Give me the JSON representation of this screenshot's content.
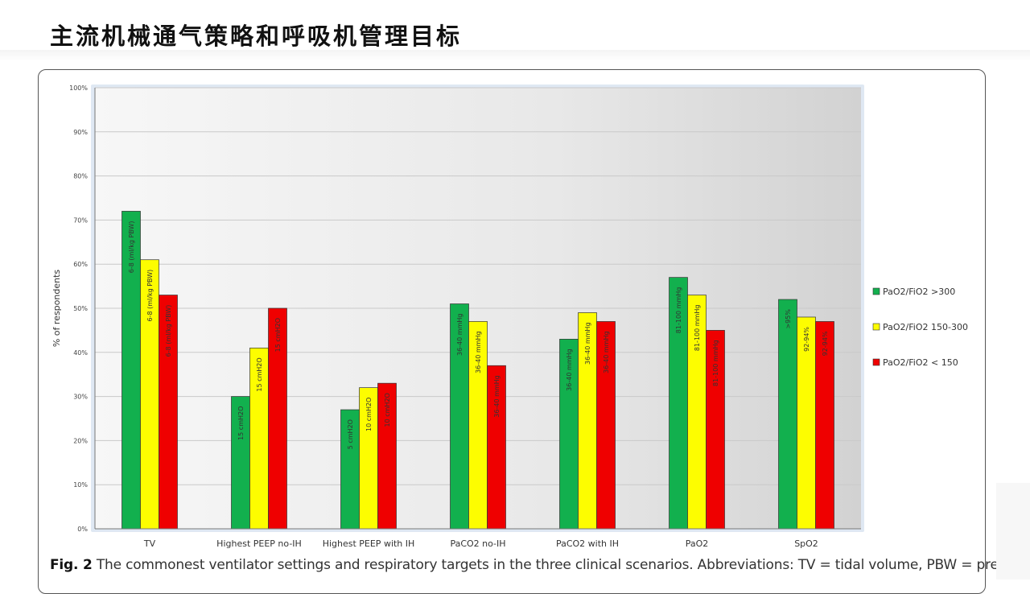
{
  "page": {
    "title": "主流机械通气策略和呼吸机管理目标"
  },
  "caption": {
    "label": "Fig. 2",
    "text": "The commonest ventilator settings and respiratory targets in the three clinical scenarios. Abbreviations: TV = tidal volume, PBW = predicted"
  },
  "colors": {
    "green": "#12b04e",
    "yellow": "#fdfd00",
    "red": "#ef0000"
  },
  "chart_data": {
    "type": "bar",
    "title": "",
    "xlabel": "",
    "ylabel": "% of respondents",
    "ylim": [
      0,
      100
    ],
    "yticks": [
      "0%",
      "10%",
      "20%",
      "30%",
      "40%",
      "50%",
      "60%",
      "70%",
      "80%",
      "90%",
      "100%"
    ],
    "grid": true,
    "legend_position": "right",
    "categories": [
      "TV",
      "Highest PEEP no-IH",
      "Highest PEEP with IH",
      "PaCO2 no-IH",
      "PaCO2 with IH",
      "PaO2",
      "SpO2"
    ],
    "series": [
      {
        "name": "PaO2/FiO2 >300",
        "color": "#12b04e",
        "values": [
          72,
          30,
          27,
          51,
          43,
          57,
          52
        ],
        "bar_labels": [
          "6-8 (ml/kg PBW)",
          "15 cmH2O",
          "5 cmH2O",
          "36-40 mmHg",
          "36-40 mmHg",
          "81-100 mmHg",
          ">95%"
        ]
      },
      {
        "name": "PaO2/FiO2 150-300",
        "color": "#fdfd00",
        "values": [
          61,
          41,
          32,
          47,
          49,
          53,
          48
        ],
        "bar_labels": [
          "6-8 (ml/kg PBW)",
          "15 cmH2O",
          "10 cmH2O",
          "36-40 mmHg",
          "36-40 mmHg",
          "81-100 mmHg",
          "92-94%"
        ]
      },
      {
        "name": "PaO2/FiO2 < 150",
        "color": "#ef0000",
        "values": [
          53,
          50,
          33,
          37,
          47,
          45,
          47
        ],
        "bar_labels": [
          "6-8 (ml/kg PBW)",
          "15 cmH2O",
          "10 cmH2O",
          "36-40 mmHg",
          "36-40 mmHg",
          "81-100 mmHg",
          "92-94%"
        ]
      }
    ]
  }
}
